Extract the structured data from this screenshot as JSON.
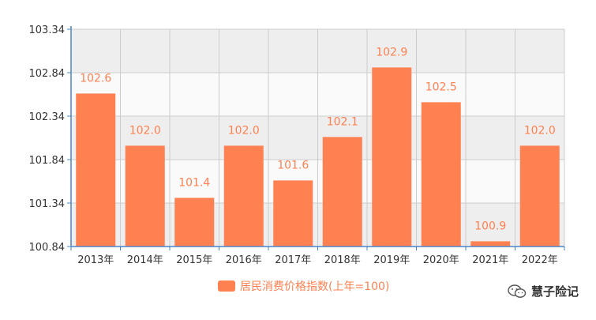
{
  "chart_data": {
    "type": "bar",
    "categories": [
      "2013年",
      "2014年",
      "2015年",
      "2016年",
      "2017年",
      "2018年",
      "2019年",
      "2020年",
      "2021年",
      "2022年"
    ],
    "series": [
      {
        "name": "居民消费价格指数(上年=100)",
        "values": [
          102.6,
          102.0,
          101.4,
          102.0,
          101.6,
          102.1,
          102.9,
          102.5,
          100.9,
          102.0
        ]
      }
    ],
    "data_labels": [
      "102.6",
      "102.0",
      "101.4",
      "102.0",
      "101.6",
      "102.1",
      "102.9",
      "102.5",
      "100.9",
      "102.0"
    ],
    "ylim": [
      100.84,
      103.34
    ],
    "yticks": [
      100.84,
      101.34,
      101.84,
      102.34,
      102.84,
      103.34
    ],
    "ytick_labels": [
      "100.84",
      "101.34",
      "101.84",
      "102.34",
      "102.84",
      "103.34"
    ],
    "grid": true,
    "legend_position": "bottom-center",
    "colors": {
      "bar": "#ff8050",
      "axis": "#4a86c5",
      "grid": "#cccccc",
      "band_dark": "#eeeeee",
      "band_light": "#fafafa"
    }
  },
  "watermark": {
    "text": "慧子险记",
    "icon": "wechat-icon"
  }
}
